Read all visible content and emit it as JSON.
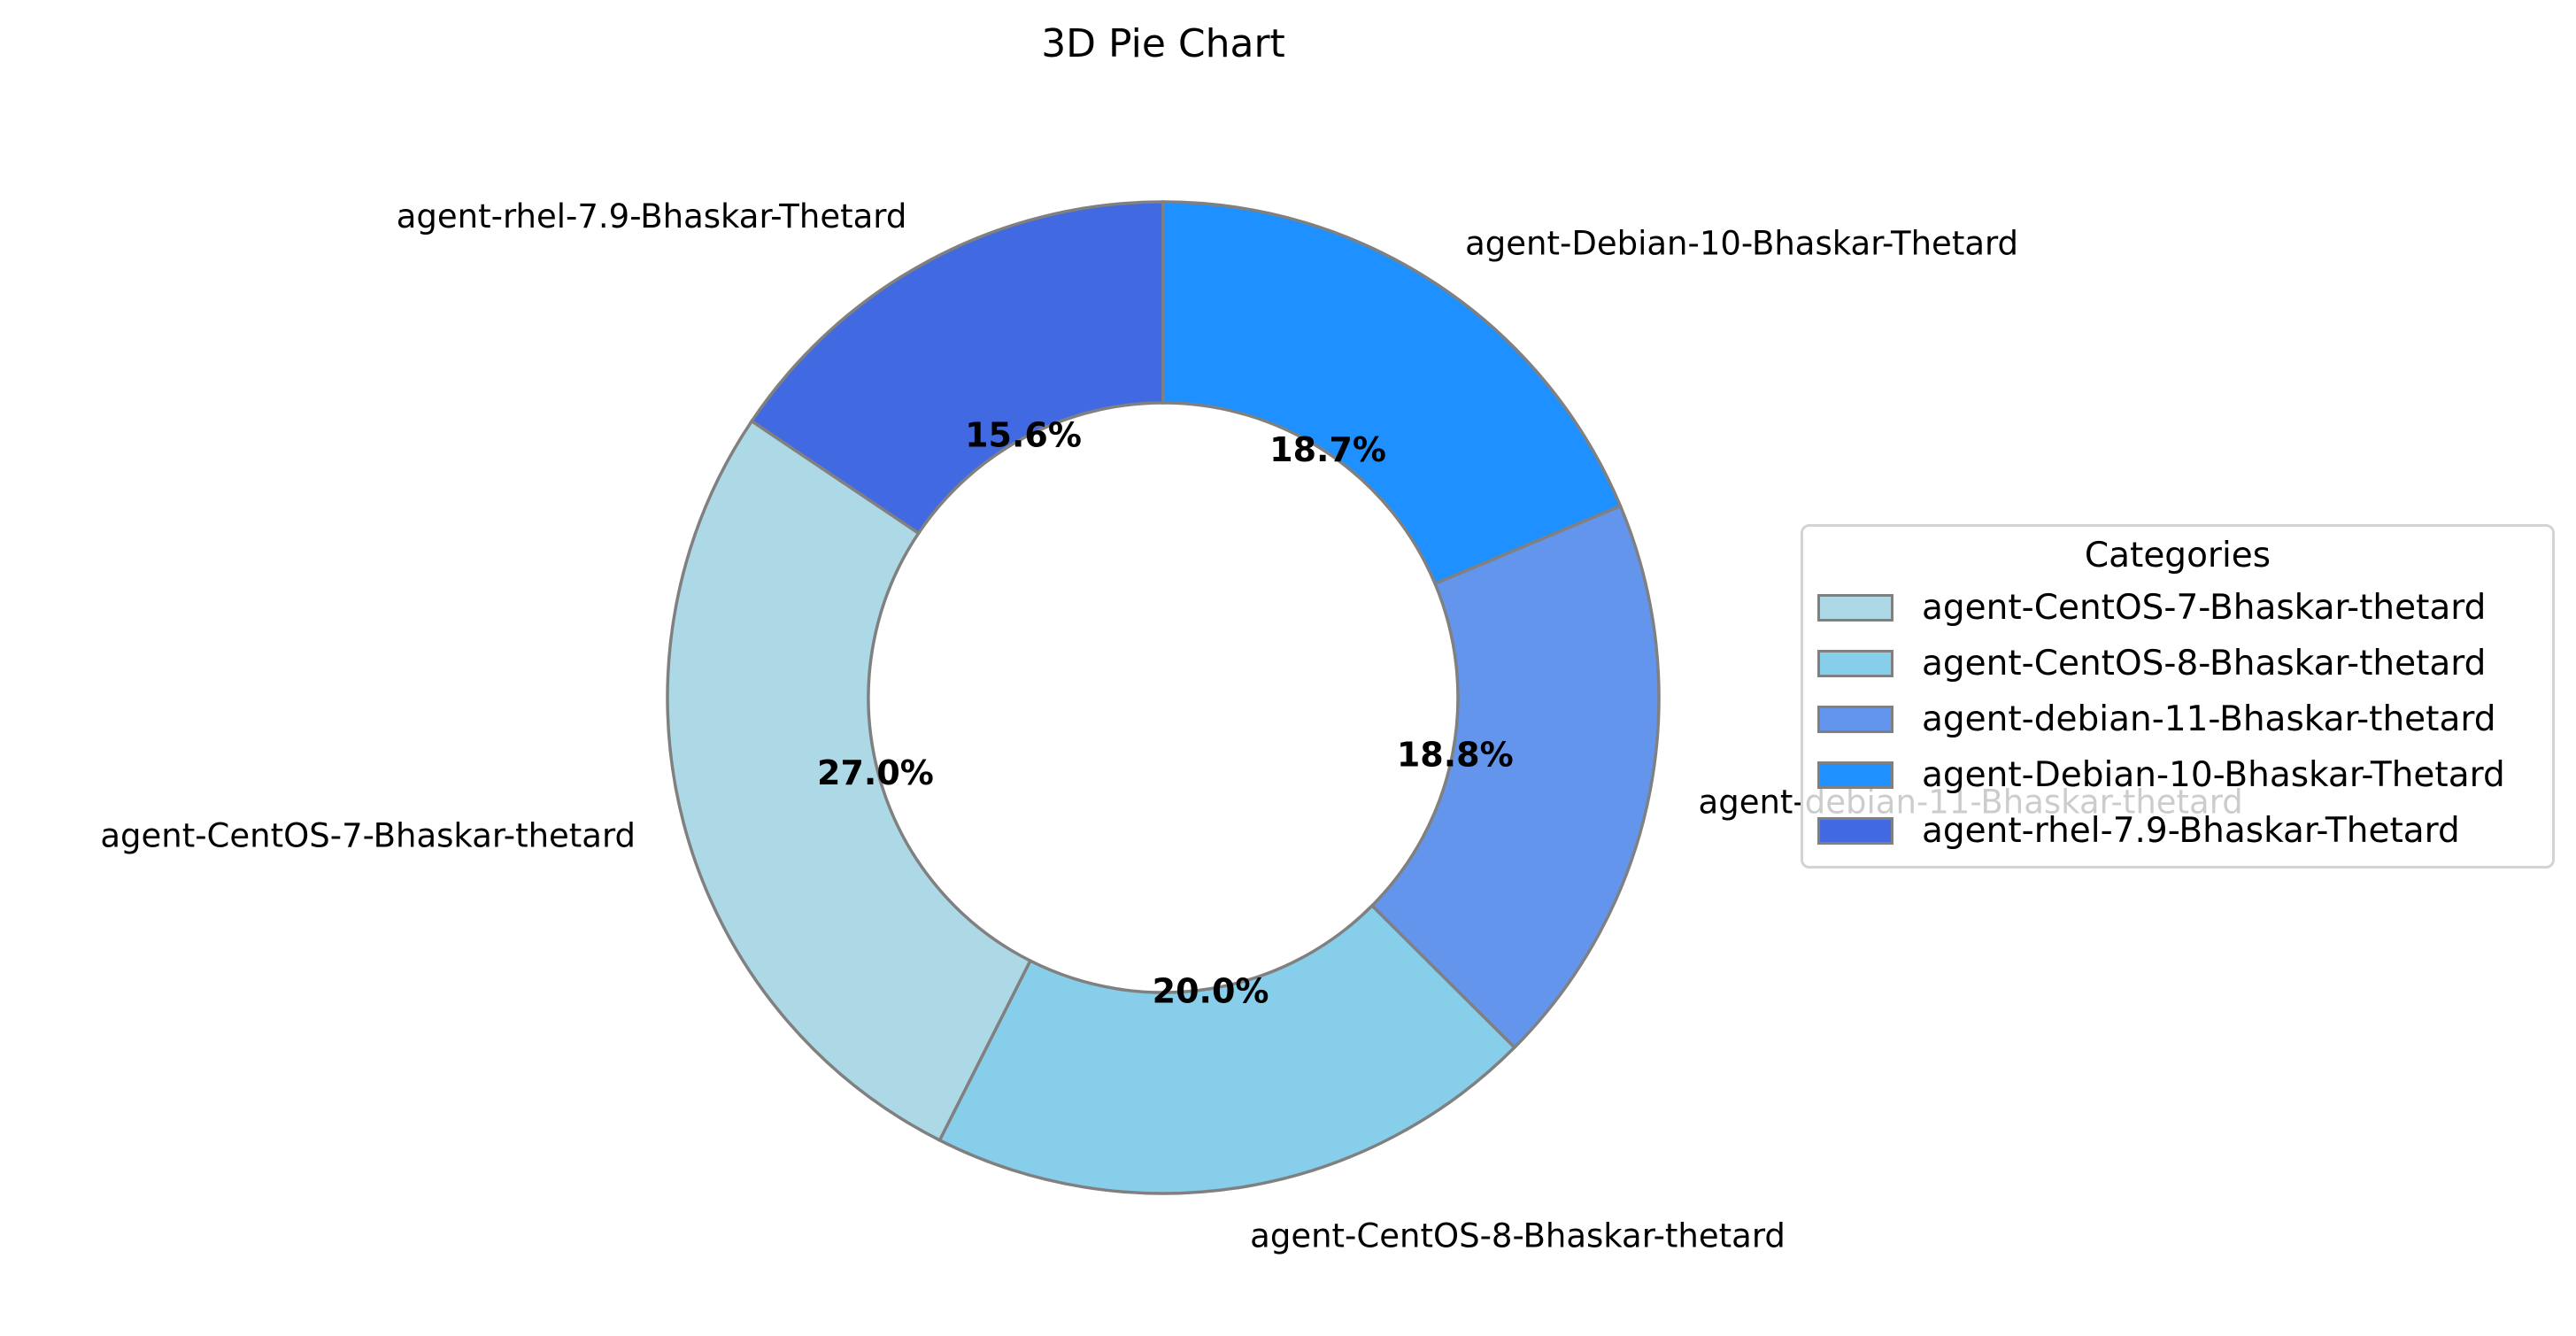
{
  "chart_data": {
    "type": "pie",
    "title": "3D Pie Chart",
    "donut": true,
    "start_angle_deg": 90,
    "direction": "counterclockwise",
    "edge_color": "#808080",
    "slices": [
      {
        "label": "agent-rhel-7.9-Bhaskar-Thetard",
        "percent": 15.6,
        "color": "#4169e1"
      },
      {
        "label": "agent-CentOS-7-Bhaskar-thetard",
        "percent": 27.0,
        "color": "#add8e6"
      },
      {
        "label": "agent-CentOS-8-Bhaskar-thetard",
        "percent": 20.0,
        "color": "#87ceeb"
      },
      {
        "label": "agent-debian-11-Bhaskar-thetard",
        "percent": 18.8,
        "color": "#6495ed"
      },
      {
        "label": "agent-Debian-10-Bhaskar-Thetard",
        "percent": 18.7,
        "color": "#1e90ff"
      }
    ],
    "legend": {
      "title": "Categories",
      "placement": "right",
      "items": [
        {
          "label": "agent-CentOS-7-Bhaskar-thetard",
          "color": "#add8e6"
        },
        {
          "label": "agent-CentOS-8-Bhaskar-thetard",
          "color": "#87ceeb"
        },
        {
          "label": "agent-debian-11-Bhaskar-thetard",
          "color": "#6495ed"
        },
        {
          "label": "agent-Debian-10-Bhaskar-Thetard",
          "color": "#1e90ff"
        },
        {
          "label": "agent-rhel-7.9-Bhaskar-Thetard",
          "color": "#4169e1"
        }
      ]
    }
  }
}
